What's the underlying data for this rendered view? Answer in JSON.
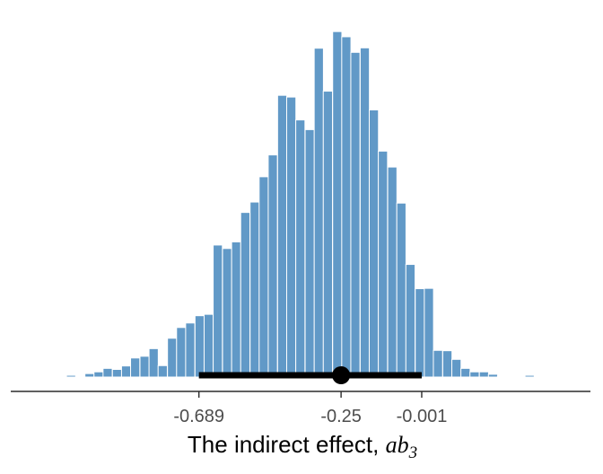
{
  "chart_data": {
    "type": "bar",
    "subtype": "histogram",
    "xlabel_prefix": "The indirect effect, ",
    "xlabel_math": "ab",
    "xlabel_subscript": "3",
    "xlim": [
      -1.27,
      0.52
    ],
    "ylim": [
      0,
      1
    ],
    "grid": false,
    "bin_width": 0.0284,
    "bin_starts": [
      -1.182,
      -1.126,
      -1.098,
      -1.041,
      -1.013,
      -0.985,
      -0.956,
      -0.928,
      -0.9,
      -0.871,
      -0.843,
      -0.815,
      -0.786,
      -0.758,
      -0.73,
      -0.701,
      -0.673,
      -0.645,
      -0.616,
      -0.588,
      -0.56,
      -0.531,
      -0.503,
      -0.475,
      -0.446,
      -0.418,
      -0.39,
      -0.361,
      -0.333,
      -0.305,
      -0.276,
      -0.248,
      -0.22,
      -0.191,
      -0.163,
      -0.135,
      -0.106,
      -0.078,
      -0.05,
      -0.021,
      0.007,
      0.035,
      0.064,
      0.092,
      0.12,
      0.148,
      0.177,
      0.205,
      0.233,
      0.261,
      0.318
    ],
    "values": [
      0.002,
      0.002,
      0.005,
      0.01,
      0.015,
      0.025,
      0.022,
      0.032,
      0.055,
      0.06,
      0.082,
      0.033,
      0.112,
      0.143,
      0.156,
      0.177,
      0.181,
      0.381,
      0.371,
      0.39,
      0.475,
      0.505,
      0.578,
      0.641,
      0.813,
      0.808,
      0.742,
      0.714,
      0.949,
      0.825,
      0.997,
      0.982,
      0.937,
      0.95,
      0.771,
      0.652,
      0.606,
      0.502,
      0.325,
      0.255,
      0.256,
      0.077,
      0.076,
      0.051,
      0.025,
      0.015,
      0.015,
      0.008,
      0.002,
      0.002,
      0.005
    ],
    "interval": {
      "lower": -0.689,
      "point": -0.25,
      "upper": -0.001
    },
    "tick_values": [
      -0.689,
      -0.25,
      -0.001
    ],
    "tick_labels": [
      "-0.689",
      "-0.25",
      "-0.001"
    ],
    "colors": {
      "bar": "#6199c7",
      "bar_edge": "#ffffff",
      "interval": "#000000",
      "axis": "#2b2b2b"
    }
  }
}
